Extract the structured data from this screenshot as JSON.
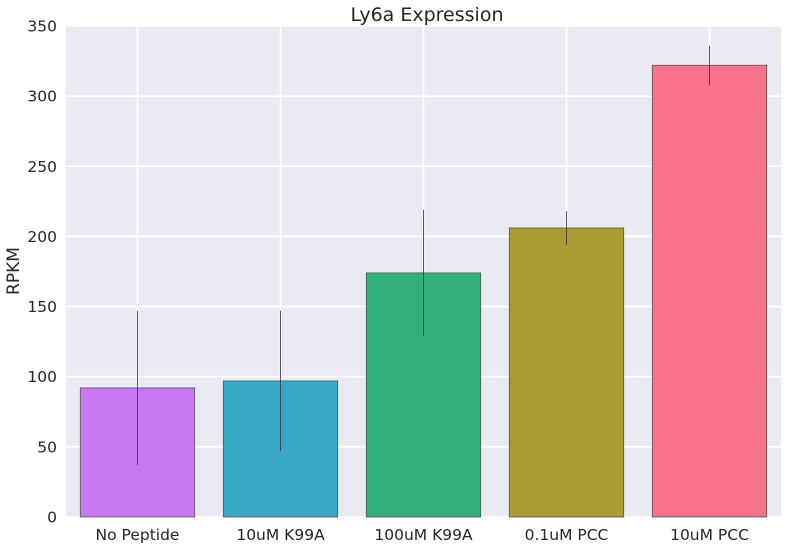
{
  "chart_data": {
    "type": "bar",
    "title": "Ly6a Expression",
    "xlabel": "",
    "ylabel": "RPKM",
    "ylim": [
      0,
      350
    ],
    "yticks": [
      0,
      50,
      100,
      150,
      200,
      250,
      300,
      350
    ],
    "grid": true,
    "legend": "none",
    "categories": [
      "No Peptide",
      "10uM K99A",
      "100uM K99A",
      "0.1uM PCC",
      "10uM PCC"
    ],
    "values": [
      92,
      97,
      174,
      206,
      322
    ],
    "error": [
      55,
      50,
      45,
      12,
      14
    ],
    "colors": [
      "#c878f2",
      "#39a8c6",
      "#33b07a",
      "#ab9c31",
      "#f77189"
    ],
    "background_color": "#eaeaf2",
    "grid_color": "#ffffff"
  }
}
